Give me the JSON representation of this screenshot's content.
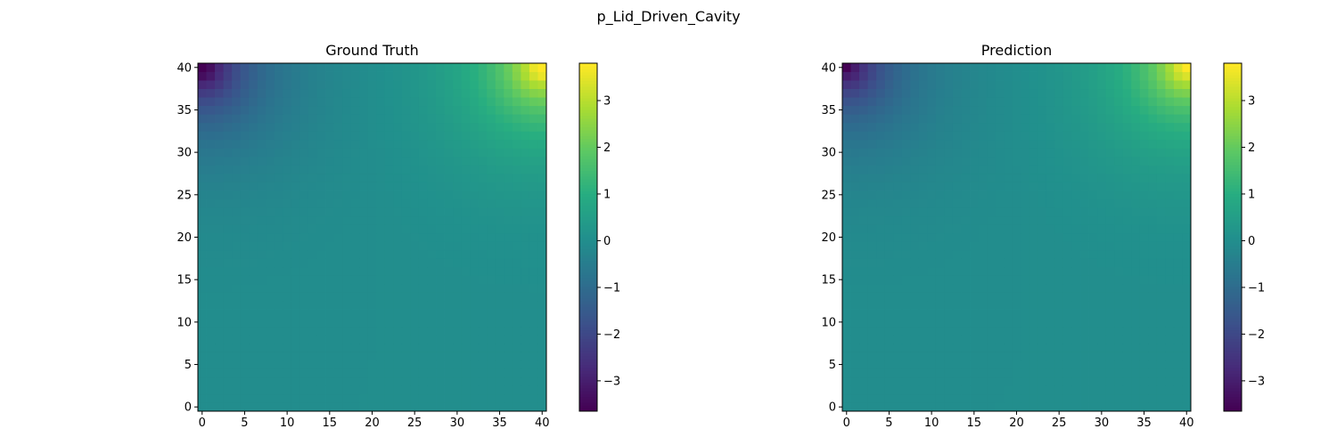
{
  "figure_title": "p_Lid_Driven_Cavity",
  "chart_data": [
    {
      "type": "heatmap",
      "title": "Ground Truth",
      "xlabel": "",
      "ylabel": "",
      "grid_size": [
        41,
        41
      ],
      "xlim": [
        -0.5,
        40.5
      ],
      "ylim": [
        -0.5,
        40.5
      ],
      "origin": "lower",
      "x_ticks": [
        0,
        5,
        10,
        15,
        20,
        25,
        30,
        35,
        40
      ],
      "y_ticks": [
        0,
        5,
        10,
        15,
        20,
        25,
        30,
        35,
        40
      ],
      "colormap": "viridis",
      "vmin": -3.65,
      "vmax": 3.8,
      "colorbar_ticks": [
        -3,
        -2,
        -1,
        0,
        1,
        2,
        3
      ],
      "colorbar_tick_labels": [
        "−3",
        "−2",
        "−1",
        "0",
        "1",
        "2",
        "3"
      ],
      "field": {
        "background": 0.0,
        "top_left_corner_min": -3.65,
        "top_right_corner_max": 3.8,
        "decay_length_cells": 4.5
      }
    },
    {
      "type": "heatmap",
      "title": "Prediction",
      "xlabel": "",
      "ylabel": "",
      "grid_size": [
        41,
        41
      ],
      "xlim": [
        -0.5,
        40.5
      ],
      "ylim": [
        -0.5,
        40.5
      ],
      "origin": "lower",
      "x_ticks": [
        0,
        5,
        10,
        15,
        20,
        25,
        30,
        35,
        40
      ],
      "y_ticks": [
        0,
        5,
        10,
        15,
        20,
        25,
        30,
        35,
        40
      ],
      "colormap": "viridis",
      "vmin": -3.65,
      "vmax": 3.8,
      "colorbar_ticks": [
        -3,
        -2,
        -1,
        0,
        1,
        2,
        3
      ],
      "colorbar_tick_labels": [
        "−3",
        "−2",
        "−1",
        "0",
        "1",
        "2",
        "3"
      ],
      "field": {
        "background": 0.0,
        "top_left_corner_min": -3.3,
        "top_right_corner_max": 3.6,
        "decay_length_cells": 4.3
      }
    }
  ]
}
